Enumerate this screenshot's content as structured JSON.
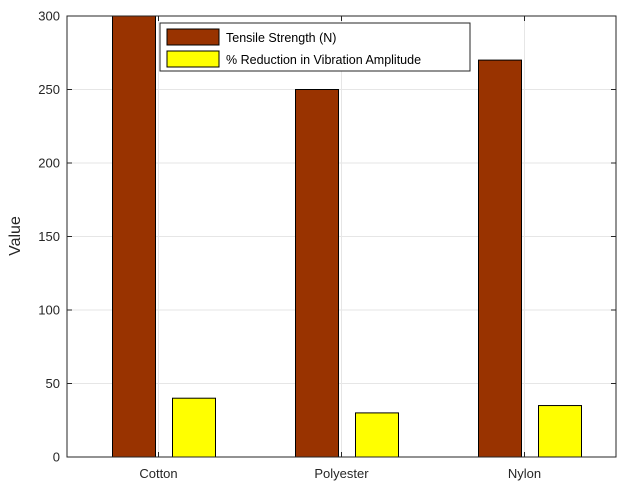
{
  "chart_data": {
    "type": "bar",
    "categories": [
      "Cotton",
      "Polyester",
      "Nylon"
    ],
    "series": [
      {
        "name": "Tensile Strength (N)",
        "values": [
          300,
          250,
          270
        ],
        "color": "#993300"
      },
      {
        "name": "% Reduction in Vibration Amplitude",
        "values": [
          40,
          30,
          35
        ],
        "color": "#ffff00"
      }
    ],
    "title": "",
    "xlabel": "",
    "ylabel": "Value",
    "ylim": [
      0,
      300
    ],
    "yticks": [
      0,
      50,
      100,
      150,
      200,
      250,
      300
    ],
    "grid": true,
    "legend_position": "top-center"
  }
}
